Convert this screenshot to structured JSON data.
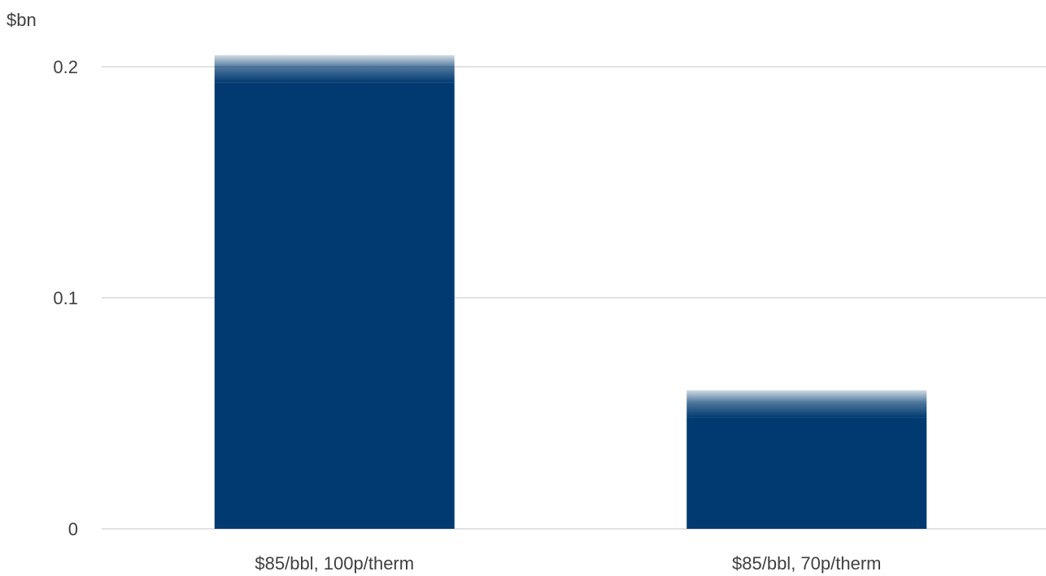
{
  "chart_data": {
    "type": "bar",
    "unit_label": "$bn",
    "categories": [
      "$85/bbl, 100p/therm",
      "$85/bbl, 70p/therm"
    ],
    "values": [
      0.205,
      0.06
    ],
    "ylim": [
      0,
      0.2
    ],
    "yticks": [
      {
        "value": 0,
        "label": "0"
      },
      {
        "value": 0.1,
        "label": "0.1"
      },
      {
        "value": 0.2,
        "label": "0.2"
      }
    ],
    "grid": true,
    "legend": "none",
    "bar_color": "#003a70",
    "bar_fade": "top edge fades to white",
    "title": "",
    "xlabel": "",
    "ylabel": ""
  }
}
